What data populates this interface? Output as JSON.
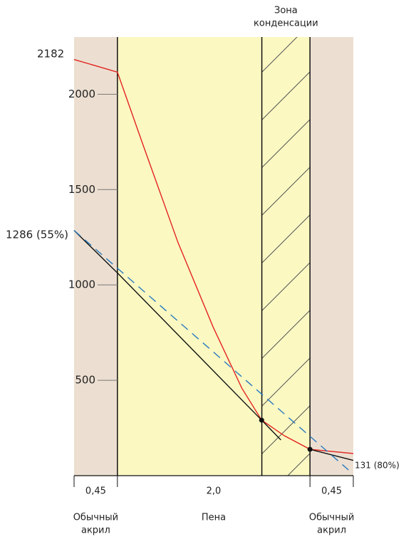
{
  "chart_data": {
    "type": "line",
    "xlim": [
      0,
      2.9
    ],
    "ylim": [
      0,
      2300
    ],
    "yticks": [
      500,
      1000,
      1500,
      2000
    ],
    "layers": [
      {
        "label": "0,45",
        "name": [
          "Обычный",
          "акрил"
        ],
        "start": 0,
        "end": 0.45,
        "color": "#ecdfd1"
      },
      {
        "label": "2,0",
        "name": [
          "Пена"
        ],
        "start": 0.45,
        "end": 2.45,
        "color": "#fbf8c2"
      },
      {
        "label": "0,45",
        "name": [
          "Обычный",
          "акрил"
        ],
        "start": 2.45,
        "end": 2.9,
        "color": "#ecdfd1"
      }
    ],
    "zone": {
      "label": [
        "Зона",
        "конденсации"
      ],
      "start": 1.95,
      "end": 2.45
    },
    "series": [
      {
        "color": "#e3231f",
        "dash": false,
        "x": [
          0,
          0.45,
          0.708,
          1.078,
          1.447,
          1.742,
          1.948,
          2.185,
          2.45,
          2.9
        ],
        "values": [
          2182,
          2116,
          1746,
          1224,
          776,
          459,
          291,
          209,
          138,
          116
        ]
      },
      {
        "color": "#111111",
        "dash": false,
        "x": [
          0,
          0.45,
          1.948,
          2.148
        ],
        "values": [
          1286,
          1063,
          291,
          187
        ]
      },
      {
        "color": "#111111",
        "dash": false,
        "x": [
          2.45,
          2.9
        ],
        "values": [
          138,
          80
        ]
      },
      {
        "color": "#2a7bc0",
        "dash": true,
        "x": [
          0,
          2.85
        ],
        "values": [
          1286,
          30
        ]
      }
    ],
    "points": {
      "x": [
        1.948,
        2.45
      ],
      "values": [
        291,
        138
      ]
    },
    "annotations": [
      "2182",
      "1286 (55%)",
      "131 (80%)"
    ]
  }
}
